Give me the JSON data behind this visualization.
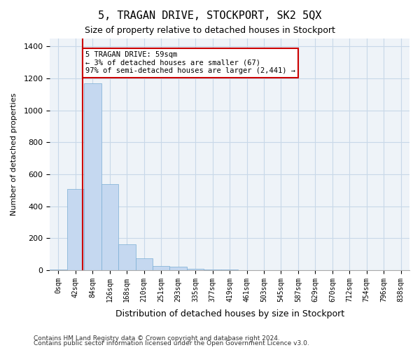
{
  "title": "5, TRAGAN DRIVE, STOCKPORT, SK2 5QX",
  "subtitle": "Size of property relative to detached houses in Stockport",
  "xlabel": "Distribution of detached houses by size in Stockport",
  "ylabel": "Number of detached properties",
  "bar_color": "#c5d8f0",
  "bar_edge_color": "#7aadd4",
  "grid_color": "#c8d8e8",
  "background_color": "#eef3f8",
  "annotation_box_color": "#cc0000",
  "vline_color": "#cc0000",
  "categories": [
    "0sqm",
    "42sqm",
    "84sqm",
    "126sqm",
    "168sqm",
    "210sqm",
    "251sqm",
    "293sqm",
    "335sqm",
    "377sqm",
    "419sqm",
    "461sqm",
    "503sqm",
    "545sqm",
    "587sqm",
    "629sqm",
    "670sqm",
    "712sqm",
    "754sqm",
    "796sqm",
    "838sqm"
  ],
  "bar_heights": [
    5,
    507,
    1170,
    540,
    160,
    75,
    28,
    20,
    10,
    5,
    2,
    0,
    0,
    0,
    0,
    0,
    0,
    0,
    0,
    0,
    0
  ],
  "ylim": [
    0,
    1450
  ],
  "yticks": [
    0,
    200,
    400,
    600,
    800,
    1000,
    1200,
    1400
  ],
  "vline_x": 1.42,
  "annotation_text": "5 TRAGAN DRIVE: 59sqm\n← 3% of detached houses are smaller (67)\n97% of semi-detached houses are larger (2,441) →",
  "footnote1": "Contains HM Land Registry data © Crown copyright and database right 2024.",
  "footnote2": "Contains public sector information licensed under the Open Government Licence v3.0.",
  "bar_width": 1.0
}
